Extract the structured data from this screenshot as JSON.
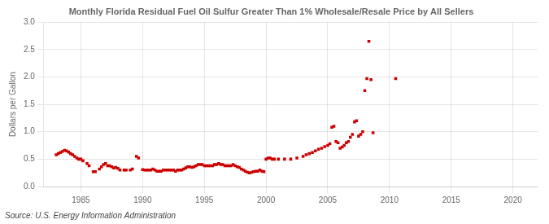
{
  "chart_data": {
    "type": "scatter",
    "title": "Monthly Florida Residual Fuel Oil Sulfur Greater Than 1% Wholesale/Resale Price by All Sellers",
    "ylabel": "Dollars per Gallon",
    "annotations": [
      "Source: U.S. Energy Information Administration"
    ],
    "color": "#cc0000",
    "marker": "square",
    "grid": true,
    "xlim": [
      1982,
      2022
    ],
    "ylim": [
      0.0,
      3.0
    ],
    "xticks": [
      1985,
      1990,
      1995,
      2000,
      2005,
      2010,
      2015,
      2020
    ],
    "yticks": [
      {
        "value": 0.0,
        "label": "0.0"
      },
      {
        "value": 0.5,
        "label": "0.5"
      },
      {
        "value": 1.0,
        "label": "1.0"
      },
      {
        "value": 1.5,
        "label": "1.5"
      },
      {
        "value": 2.0,
        "label": "2.0"
      },
      {
        "value": 2.5,
        "label": "2.5"
      },
      {
        "value": 3.0,
        "label": "3.0"
      }
    ],
    "x": [
      1983.0,
      1983.17,
      1983.33,
      1983.5,
      1983.67,
      1983.83,
      1984.0,
      1984.17,
      1984.33,
      1984.5,
      1984.67,
      1984.83,
      1985.0,
      1985.17,
      1985.5,
      1985.67,
      1986.0,
      1986.17,
      1986.5,
      1986.67,
      1986.83,
      1987.0,
      1987.17,
      1987.33,
      1987.5,
      1987.67,
      1987.83,
      1988.0,
      1988.17,
      1988.5,
      1988.67,
      1989.0,
      1989.17,
      1989.5,
      1989.67,
      1990.0,
      1990.17,
      1990.33,
      1990.5,
      1990.67,
      1990.83,
      1991.0,
      1991.17,
      1991.33,
      1991.5,
      1991.67,
      1991.83,
      1992.0,
      1992.17,
      1992.33,
      1992.5,
      1992.67,
      1992.83,
      1993.0,
      1993.17,
      1993.33,
      1993.5,
      1993.67,
      1993.83,
      1994.0,
      1994.17,
      1994.33,
      1994.5,
      1994.67,
      1994.83,
      1995.0,
      1995.17,
      1995.33,
      1995.5,
      1995.67,
      1995.83,
      1996.0,
      1996.17,
      1996.33,
      1996.5,
      1996.67,
      1996.83,
      1997.0,
      1997.17,
      1997.33,
      1997.5,
      1997.67,
      1997.83,
      1998.0,
      1998.17,
      1998.33,
      1998.5,
      1998.67,
      1998.83,
      1999.0,
      1999.17,
      1999.33,
      1999.5,
      1999.67,
      1999.83,
      2000.0,
      2000.17,
      2000.33,
      2000.5,
      2000.67,
      2001.0,
      2001.5,
      2002.0,
      2002.5,
      2003.0,
      2003.25,
      2003.5,
      2003.75,
      2004.0,
      2004.25,
      2004.5,
      2004.75,
      2005.0,
      2005.17,
      2005.33,
      2005.5,
      2005.67,
      2005.83,
      2006.0,
      2006.17,
      2006.33,
      2006.5,
      2006.67,
      2006.83,
      2007.0,
      2007.17,
      2007.33,
      2007.5,
      2007.67,
      2007.83,
      2008.0,
      2008.17,
      2008.33,
      2008.5,
      2008.67,
      2010.5
    ],
    "values": [
      0.58,
      0.6,
      0.62,
      0.64,
      0.66,
      0.65,
      0.63,
      0.6,
      0.58,
      0.55,
      0.52,
      0.5,
      0.5,
      0.47,
      0.42,
      0.38,
      0.27,
      0.27,
      0.32,
      0.36,
      0.4,
      0.42,
      0.38,
      0.38,
      0.36,
      0.34,
      0.35,
      0.33,
      0.3,
      0.3,
      0.3,
      0.3,
      0.32,
      0.55,
      0.52,
      0.31,
      0.3,
      0.3,
      0.3,
      0.3,
      0.32,
      0.3,
      0.28,
      0.28,
      0.28,
      0.3,
      0.3,
      0.3,
      0.3,
      0.3,
      0.3,
      0.28,
      0.3,
      0.3,
      0.3,
      0.32,
      0.34,
      0.36,
      0.36,
      0.35,
      0.36,
      0.38,
      0.4,
      0.4,
      0.4,
      0.38,
      0.38,
      0.38,
      0.38,
      0.38,
      0.4,
      0.4,
      0.42,
      0.4,
      0.4,
      0.38,
      0.38,
      0.38,
      0.38,
      0.4,
      0.38,
      0.36,
      0.35,
      0.32,
      0.3,
      0.28,
      0.26,
      0.25,
      0.26,
      0.27,
      0.28,
      0.28,
      0.3,
      0.28,
      0.27,
      0.5,
      0.52,
      0.52,
      0.5,
      0.5,
      0.5,
      0.5,
      0.5,
      0.52,
      0.55,
      0.58,
      0.6,
      0.62,
      0.65,
      0.68,
      0.7,
      0.73,
      0.75,
      0.78,
      1.08,
      1.1,
      0.82,
      0.8,
      0.7,
      0.72,
      0.75,
      0.8,
      0.82,
      0.9,
      0.95,
      1.18,
      1.2,
      0.92,
      0.95,
      1.0,
      1.75,
      1.97,
      2.65,
      1.95,
      0.98,
      1.97
    ]
  }
}
